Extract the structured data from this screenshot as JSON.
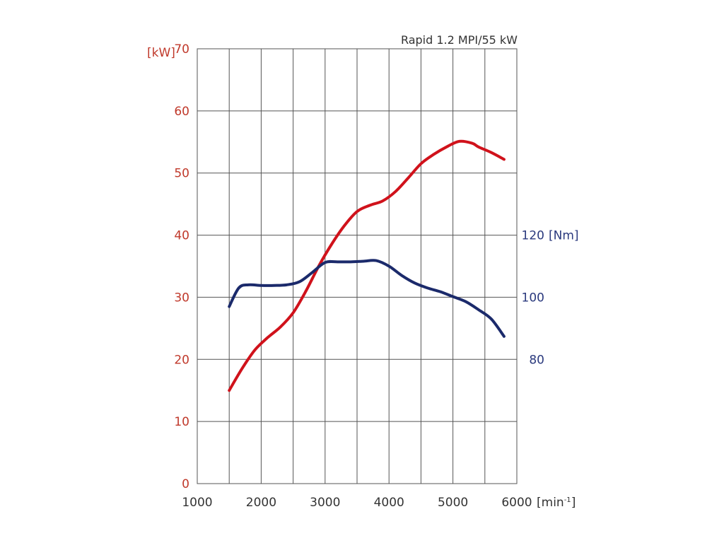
{
  "chart_data": {
    "type": "line",
    "title": "Rapid 1.2 MPI/55 kW",
    "x_axis": {
      "unit_label": "[min",
      "unit_superscript": "-1",
      "unit_close": "]",
      "range": [
        1000,
        6000
      ],
      "ticks": [
        "1000",
        "2000",
        "3000",
        "4000",
        "5000",
        "6000"
      ]
    },
    "y_left": {
      "unit_label": "[kW]",
      "range": [
        0,
        70
      ],
      "ticks": [
        "0",
        "10",
        "20",
        "30",
        "40",
        "50",
        "60",
        "70"
      ],
      "color": "#c0392b"
    },
    "y_right": {
      "unit_label": "[Nm]",
      "ticks": [
        "80",
        "100",
        "120"
      ],
      "color": "#2b3a7e"
    },
    "grid": true,
    "series": [
      {
        "axis": "left",
        "color": "#d0121b",
        "x": [
          1500,
          1700,
          1900,
          2100,
          2300,
          2500,
          2700,
          2900,
          3100,
          3300,
          3500,
          3700,
          3900,
          4100,
          4300,
          4500,
          4700,
          4900,
          5100,
          5300,
          5400,
          5600,
          5800
        ],
        "y": [
          15,
          18.5,
          21.5,
          23.5,
          25.2,
          27.5,
          31,
          35,
          38.5,
          41.5,
          43.8,
          44.8,
          45.5,
          47,
          49.2,
          51.5,
          53,
          54.2,
          55.1,
          54.8,
          54.2,
          53.3,
          52.2
        ]
      },
      {
        "axis": "right",
        "color": "#1b2a6b",
        "x": [
          1500,
          1650,
          1800,
          2000,
          2200,
          2400,
          2600,
          2800,
          3000,
          3200,
          3400,
          3600,
          3800,
          4000,
          4200,
          4400,
          4600,
          4800,
          5000,
          5200,
          5400,
          5600,
          5800
        ],
        "y": [
          28.5,
          31.5,
          32,
          31.9,
          31.9,
          32,
          32.5,
          34,
          35.6,
          35.7,
          35.7,
          35.8,
          35.9,
          35,
          33.5,
          32.3,
          31.5,
          30.9,
          30.1,
          29.3,
          28,
          26.5,
          23.7
        ]
      }
    ]
  }
}
